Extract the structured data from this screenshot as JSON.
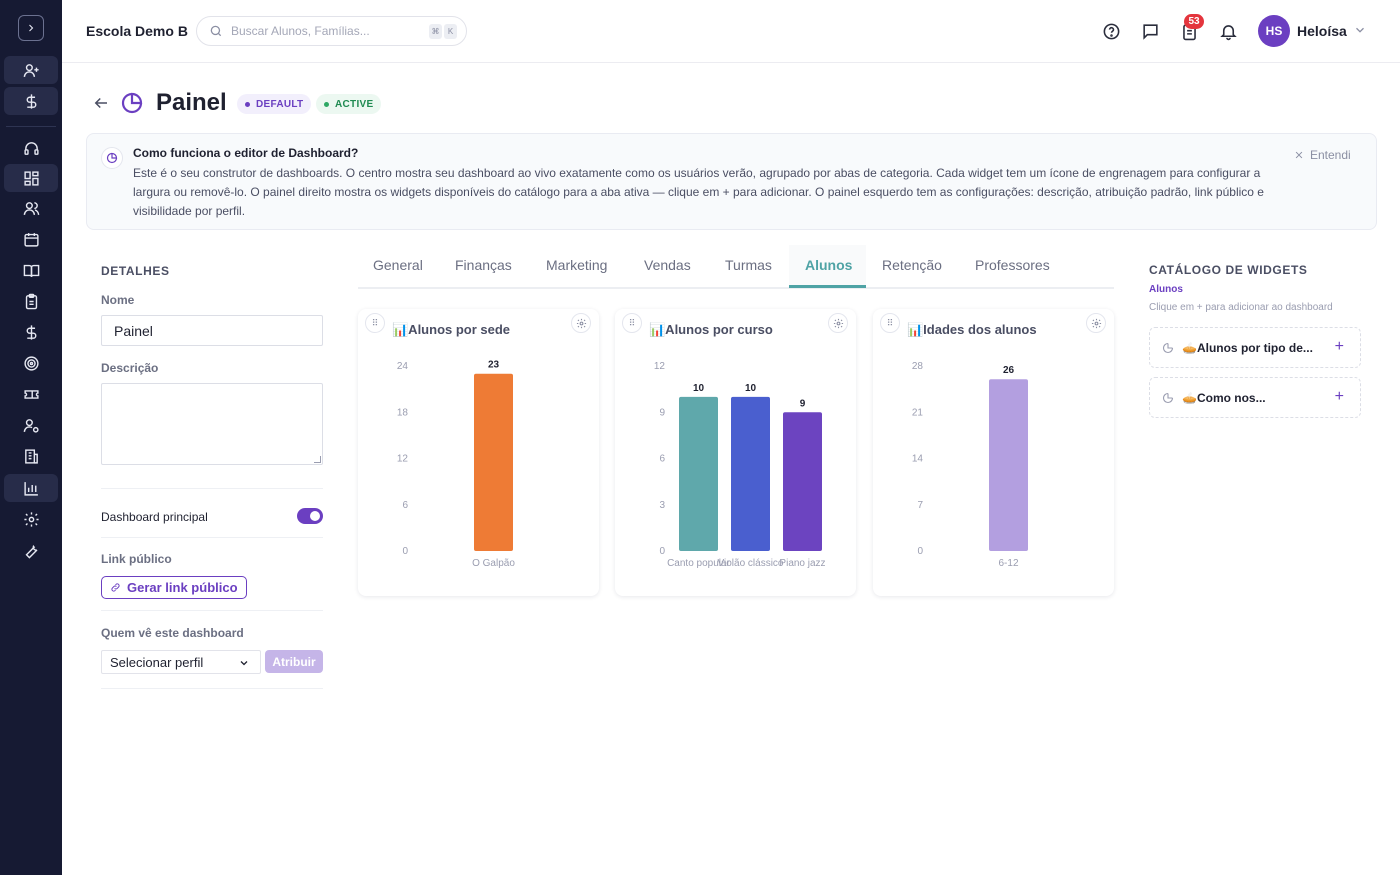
{
  "header": {
    "school_name": "Escola Demo B",
    "search_placeholder": "Buscar Alunos, Famílias...",
    "kbd_1": "⌘",
    "kbd_2": "K",
    "notifications_count": "53",
    "avatar_initials": "HS",
    "user_name": "Heloísa"
  },
  "page": {
    "title": "Painel",
    "badge_default": "DEFAULT",
    "badge_active": "ACTIVE"
  },
  "banner": {
    "title": "Como funciona o editor de Dashboard?",
    "text": "Este é o seu construtor de dashboards. O centro mostra seu dashboard ao vivo exatamente como os usuários verão, agrupado por abas de categoria. Cada widget tem um ícone de engrenagem para configurar a largura ou removê-lo. O painel direito mostra os widgets disponíveis do catálogo para a aba ativa — clique em + para adicionar. O painel esquerdo tem as configurações: descrição, atribuição padrão, link público e visibilidade por perfil.",
    "dismiss_label": "Entendi"
  },
  "details": {
    "section_title": "DETALHES",
    "name_label": "Nome",
    "name_value": "Painel",
    "description_label": "Descrição",
    "description_value": "",
    "main_dashboard_label": "Dashboard principal",
    "main_dashboard_on": true,
    "public_link_label": "Link público",
    "public_link_button": "Gerar link público",
    "visibility_label": "Quem vê este dashboard",
    "profile_select_value": "Selecionar perfil",
    "assign_button": "Atribuir"
  },
  "tabs": [
    {
      "label": "General"
    },
    {
      "label": "Finanças"
    },
    {
      "label": "Marketing"
    },
    {
      "label": "Vendas"
    },
    {
      "label": "Turmas"
    },
    {
      "label": "Alunos",
      "active": true
    },
    {
      "label": "Retenção"
    },
    {
      "label": "Professores"
    }
  ],
  "widgets": [
    {
      "title": "📊Alunos por sede",
      "icon": "chart-emoji"
    },
    {
      "title": "📊Alunos por curso",
      "icon": "chart-emoji"
    },
    {
      "title": "📊Idades dos alunos",
      "icon": "chart-emoji"
    }
  ],
  "chart_data": [
    {
      "type": "bar",
      "categories": [
        "O Galpão"
      ],
      "values": [
        23
      ],
      "yticks": [
        0,
        6,
        12,
        18,
        24
      ],
      "ylim": [
        0,
        24
      ],
      "colors": [
        "#ee7b35"
      ]
    },
    {
      "type": "bar",
      "categories": [
        "Canto popular",
        "Violão clássico",
        "Piano jazz"
      ],
      "values": [
        10,
        10,
        9
      ],
      "yticks": [
        0,
        3,
        6,
        9,
        12
      ],
      "ylim": [
        0,
        12
      ],
      "colors": [
        "#5fa8ab",
        "#4a5fcf",
        "#6c44c0"
      ]
    },
    {
      "type": "bar",
      "categories": [
        "6-12"
      ],
      "values": [
        26
      ],
      "yticks": [
        0,
        7,
        14,
        21,
        28
      ],
      "ylim": [
        0,
        28
      ],
      "colors": [
        "#b39fe0"
      ]
    }
  ],
  "catalog": {
    "title": "CATÁLOGO DE WIDGETS",
    "active_tab": "Alunos",
    "hint": "Clique em + para adicionar ao dashboard",
    "items": [
      {
        "label": "🥧Alunos por tipo de...",
        "icon": "pie-chart-icon"
      },
      {
        "label": "🥧Como nos...",
        "icon": "pie-chart-icon"
      }
    ]
  },
  "colors": {
    "sidebar_bg": "#161a33",
    "accent_purple": "#6b3fc1",
    "active_tab": "#4fa3a5"
  }
}
